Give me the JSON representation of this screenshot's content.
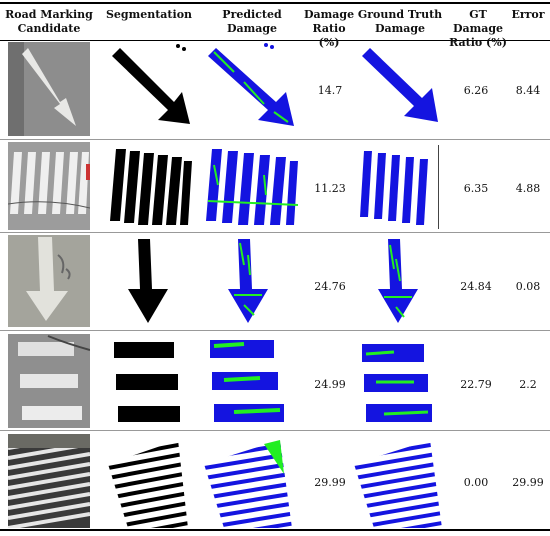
{
  "headers": {
    "candidate": "Road Marking Candidate",
    "segmentation": "Segmentation",
    "predicted": "Predicted Damage",
    "damage_ratio": "Damage Ratio (%)",
    "ground_truth": "Ground Truth Damage",
    "gt_damage_ratio": "GT Damage Ratio (%)",
    "error": "Error"
  },
  "rows": [
    {
      "damage_ratio": "14.7",
      "gt_damage_ratio": "6.26",
      "error": "8.44"
    },
    {
      "damage_ratio": "11.23",
      "gt_damage_ratio": "6.35",
      "error": "4.88"
    },
    {
      "damage_ratio": "24.76",
      "gt_damage_ratio": "24.84",
      "error": "0.08"
    },
    {
      "damage_ratio": "24.99",
      "gt_damage_ratio": "22.79",
      "error": "2.2"
    },
    {
      "damage_ratio": "29.99",
      "gt_damage_ratio": "0.00",
      "error": "29.99"
    }
  ],
  "colors": {
    "segmentation": "#000000",
    "damage_blue": "#1414e0",
    "damage_green": "#22ee22",
    "road_gray": "#9a9a9a"
  }
}
